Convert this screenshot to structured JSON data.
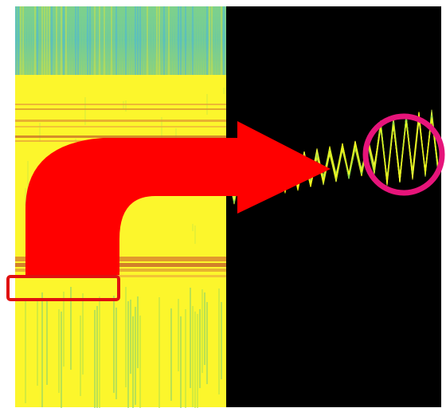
{
  "figure": {
    "heatmap": {
      "blocks": [
        "cyan-green-top-band",
        "yellow-band",
        "red-orange-streak-band",
        "green-speckled-bottom-band"
      ]
    },
    "trace_panel": {
      "background": "#000000",
      "trace_colors": [
        "#ffff33",
        "#f2f20d",
        "#ccee44",
        "#66cc55"
      ]
    },
    "annotations": {
      "arrow_color": "#ff0000",
      "selection_box_color": "#e01010",
      "highlight_circle_color": "#e6147a"
    }
  }
}
